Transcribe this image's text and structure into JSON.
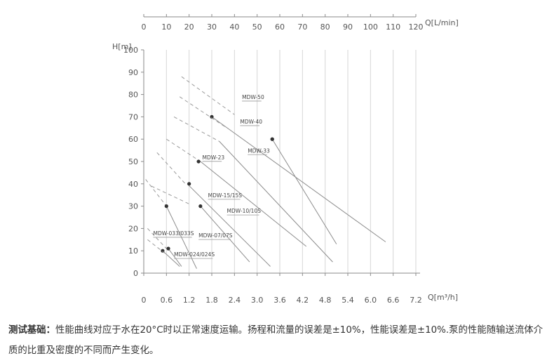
{
  "chart_data": {
    "type": "line",
    "title": "",
    "x_top": {
      "label": "Q[L/min]",
      "ticks": [
        0,
        10,
        20,
        30,
        40,
        50,
        60,
        70,
        80,
        90,
        100,
        110,
        120
      ],
      "range": [
        0,
        120
      ]
    },
    "x_bottom": {
      "label": "Q[m³/h]",
      "ticks": [
        "0",
        "0.6",
        "1.2",
        "1.8",
        "2.4",
        "3.0",
        "3.6",
        "4.2",
        "4.8",
        "5.4",
        "6.0",
        "6.6",
        "7.2"
      ],
      "range": [
        0,
        7.2
      ]
    },
    "y": {
      "label": "H[m]",
      "ticks": [
        0,
        10,
        20,
        30,
        40,
        50,
        60,
        70,
        80,
        90,
        100
      ],
      "range": [
        0,
        100
      ]
    },
    "grid": "vertical-only",
    "series": [
      {
        "name": "MDW-50",
        "dashed": [
          [
            1.0,
            88
          ],
          [
            2.4,
            71
          ]
        ],
        "solid": [
          [
            1.8,
            70
          ],
          [
            6.4,
            14
          ]
        ],
        "point": [
          1.8,
          70
        ],
        "label_at": [
          2.6,
          78
        ]
      },
      {
        "name": "MDW-40",
        "dashed": [
          [
            0.95,
            79
          ],
          [
            2.2,
            65
          ]
        ],
        "solid": [
          [
            3.4,
            60
          ],
          [
            5.1,
            13
          ]
        ],
        "point": [
          3.4,
          60
        ],
        "label_at": [
          2.55,
          67
        ]
      },
      {
        "name": "MDW-33",
        "dashed": [
          [
            0.8,
            70
          ],
          [
            2.0,
            59
          ]
        ],
        "solid": [
          [
            2.0,
            59
          ],
          [
            5.0,
            5
          ]
        ],
        "point": [
          3.4,
          60
        ],
        "label_at": [
          2.75,
          54
        ]
      },
      {
        "name": "MDW-23",
        "dashed": [
          [
            0.6,
            60
          ],
          [
            1.5,
            50
          ]
        ],
        "solid": [
          [
            1.5,
            50
          ],
          [
            4.3,
            12
          ]
        ],
        "point": [
          1.45,
          50
        ],
        "label_at": [
          1.55,
          51
        ]
      },
      {
        "name": "MDW-15/15S",
        "dashed": [
          [
            0.35,
            54
          ],
          [
            1.1,
            40
          ]
        ],
        "solid": [
          [
            1.15,
            40
          ],
          [
            3.35,
            3
          ]
        ],
        "point": [
          1.2,
          40
        ],
        "label_at": [
          1.7,
          34
        ]
      },
      {
        "name": "MDW-10/10S",
        "dashed": [
          [
            0.2,
            39
          ],
          [
            1.2,
            31
          ]
        ],
        "solid": [
          [
            1.5,
            30
          ],
          [
            2.8,
            5
          ]
        ],
        "point": [
          1.5,
          30
        ],
        "label_at": [
          2.2,
          27
        ]
      },
      {
        "name": "MDW-07/07S",
        "dashed": [
          [
            0.05,
            42
          ],
          [
            0.6,
            30
          ]
        ],
        "solid": [
          [
            0.6,
            30
          ],
          [
            1.4,
            2
          ]
        ],
        "point": [
          0.6,
          30
        ],
        "label_at": [
          1.45,
          16
        ]
      },
      {
        "name": "MDW-033/033S",
        "dashed": [
          [
            0.1,
            20
          ],
          [
            0.6,
            11
          ]
        ],
        "solid": [
          [
            0.5,
            10
          ],
          [
            0.95,
            3
          ]
        ],
        "point": [
          0.5,
          10
        ],
        "label_at": [
          0.25,
          17
        ]
      },
      {
        "name": "MDW-024/024S",
        "dashed": [
          [
            0.1,
            15
          ],
          [
            0.55,
            9
          ]
        ],
        "solid": [
          [
            0.65,
            11
          ],
          [
            1.0,
            3
          ]
        ],
        "point": [
          0.65,
          11
        ],
        "label_at": [
          0.8,
          7.5
        ]
      }
    ]
  },
  "note": {
    "label": "测试基础：",
    "text": "性能曲线对应于水在20°C时以正常速度运输。扬程和流量的误差是±10%，性能误差是±10%.泵的性能随输送流体介质的比重及密度的不同而产生变化。"
  }
}
